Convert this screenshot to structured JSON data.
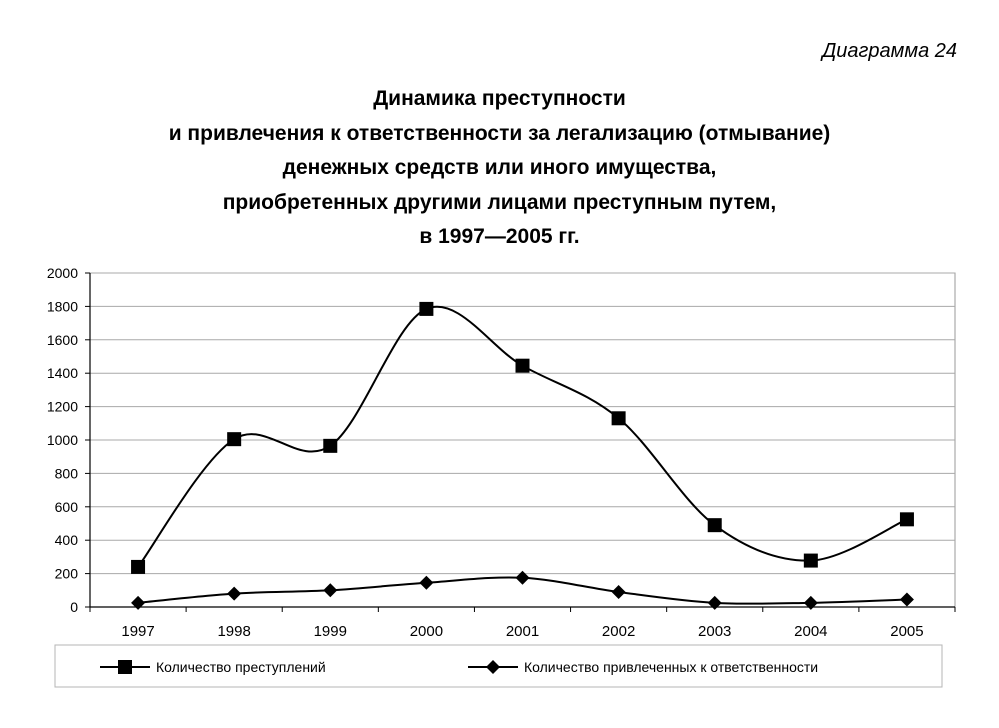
{
  "diagram_label": "Диаграмма 24",
  "chart_data": {
    "type": "line",
    "title_lines": [
      "Динамика преступности",
      "и привлечения к ответственности за легализацию (отмывание)",
      "денежных средств или иного имущества,",
      "приобретенных другими лицами преступным путем,",
      "в 1997—2005 гг."
    ],
    "categories": [
      "1997",
      "1998",
      "1999",
      "2000",
      "2001",
      "2002",
      "2003",
      "2004",
      "2005"
    ],
    "ylim": [
      0,
      2000
    ],
    "yticks": [
      "0",
      "200",
      "400",
      "600",
      "800",
      "1000",
      "1200",
      "1400",
      "1600",
      "1800",
      "2000"
    ],
    "grid": true,
    "legend_position": "bottom",
    "series": [
      {
        "name": "Количество преступлений",
        "marker": "square",
        "color": "#000000",
        "values": [
          240,
          1005,
          965,
          1785,
          1445,
          1130,
          490,
          278,
          525
        ]
      },
      {
        "name": "Количество привлеченных к ответственности",
        "marker": "diamond",
        "color": "#000000",
        "values": [
          25,
          80,
          100,
          145,
          175,
          90,
          25,
          25,
          45
        ]
      }
    ]
  }
}
